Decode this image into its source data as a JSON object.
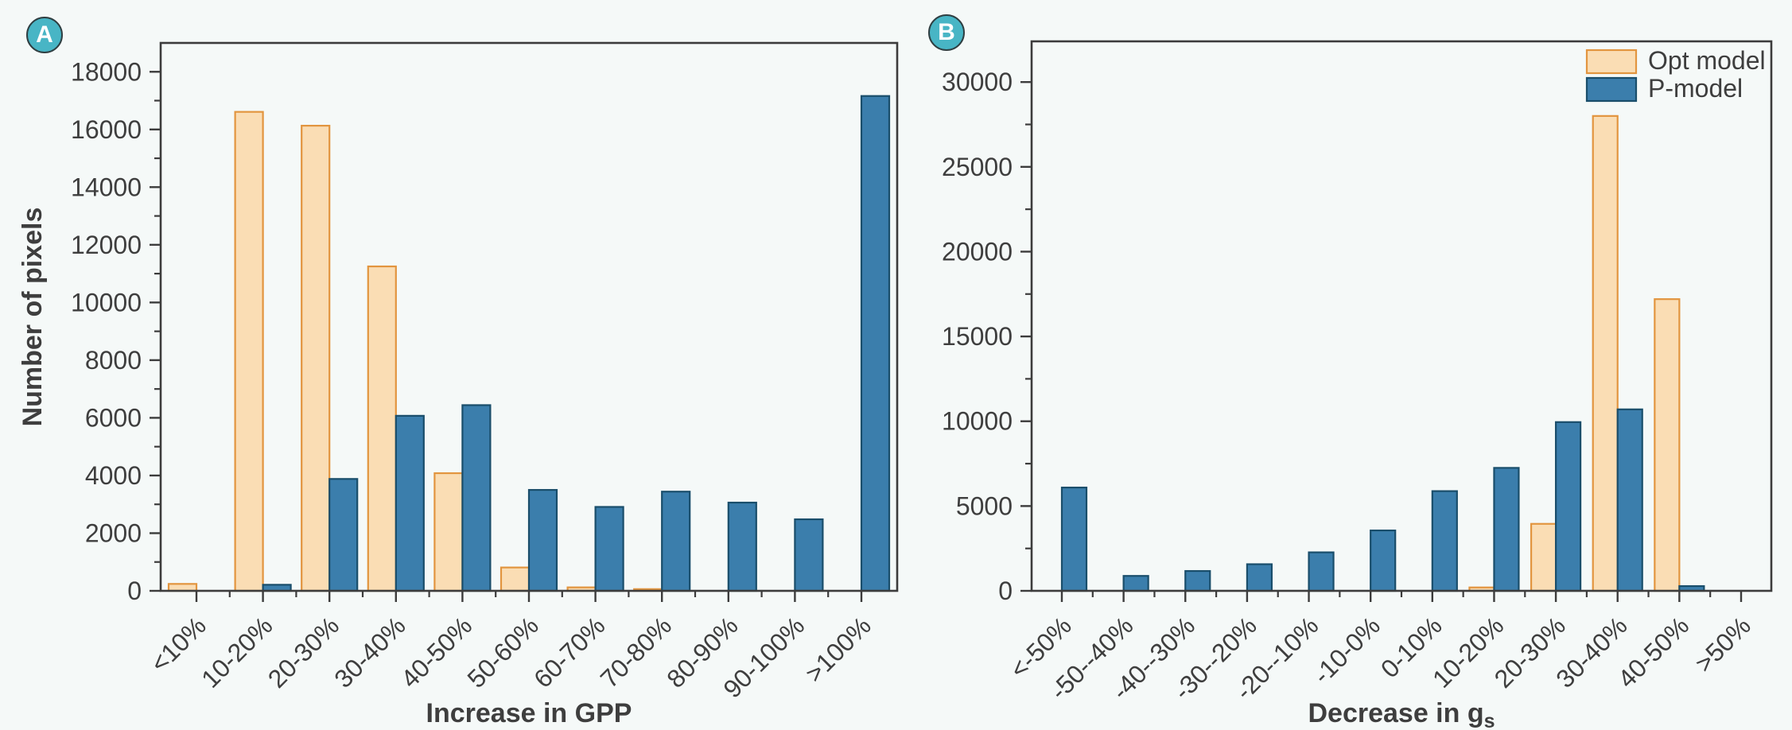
{
  "figure": {
    "background": "#F5F9F8",
    "axis_color": "#3C3C3C",
    "text_color": "#3E3E3E",
    "badge_fill": "#48B5C5",
    "badge_text_color": "#FFFFFF"
  },
  "badges": [
    {
      "label": "A"
    },
    {
      "label": "B"
    }
  ],
  "series_styles": {
    "opt_model": {
      "fill": "#FADDB4",
      "edge": "#E2953F"
    },
    "p_model": {
      "fill": "#3B7EAC",
      "edge": "#1A4E6B"
    }
  },
  "legend": {
    "items": [
      "Opt model",
      "P-model"
    ],
    "position": "top-right-panel-B"
  },
  "chart_data": [
    {
      "id": "panel-a",
      "type": "bar",
      "panel_label": "A",
      "xlabel": "Increase in GPP",
      "xlabel_subscript": "",
      "ylabel": "Number of pixels",
      "categories": [
        "<10%",
        "10-20%",
        "20-30%",
        "30-40%",
        "40-50%",
        "50-60%",
        "60-70%",
        "70-80%",
        "80-90%",
        "90-100%",
        ">100%"
      ],
      "series": [
        {
          "name": "Opt model",
          "values": [
            240,
            16610,
            16130,
            11250,
            4080,
            810,
            120,
            60,
            0,
            0,
            0
          ]
        },
        {
          "name": "P-model",
          "values": [
            0,
            210,
            3880,
            6070,
            6440,
            3500,
            2910,
            3440,
            3060,
            2480,
            17160
          ]
        }
      ],
      "ylim": [
        0,
        19000
      ],
      "ytick_step": 2000,
      "yminor_step": 1000,
      "grid": false,
      "legend": false
    },
    {
      "id": "panel-b",
      "type": "bar",
      "panel_label": "B",
      "xlabel": "Decrease in g",
      "xlabel_subscript": "s",
      "ylabel": "",
      "categories": [
        "<-50%",
        "-50--40%",
        "-40--30%",
        "-30--20%",
        "-20--10%",
        "-10-0%",
        "0-10%",
        "10-20%",
        "20-30%",
        "30-40%",
        "40-50%",
        ">50%"
      ],
      "series": [
        {
          "name": "Opt model",
          "values": [
            0,
            0,
            0,
            0,
            0,
            0,
            0,
            200,
            3950,
            28000,
            17200,
            0
          ]
        },
        {
          "name": "P-model",
          "values": [
            6090,
            880,
            1170,
            1570,
            2270,
            3560,
            5880,
            7250,
            9950,
            10700,
            280,
            0
          ]
        }
      ],
      "ylim": [
        0,
        32400
      ],
      "ytick_step": 5000,
      "yminor_step": 2500,
      "grid": false,
      "legend": true
    }
  ]
}
